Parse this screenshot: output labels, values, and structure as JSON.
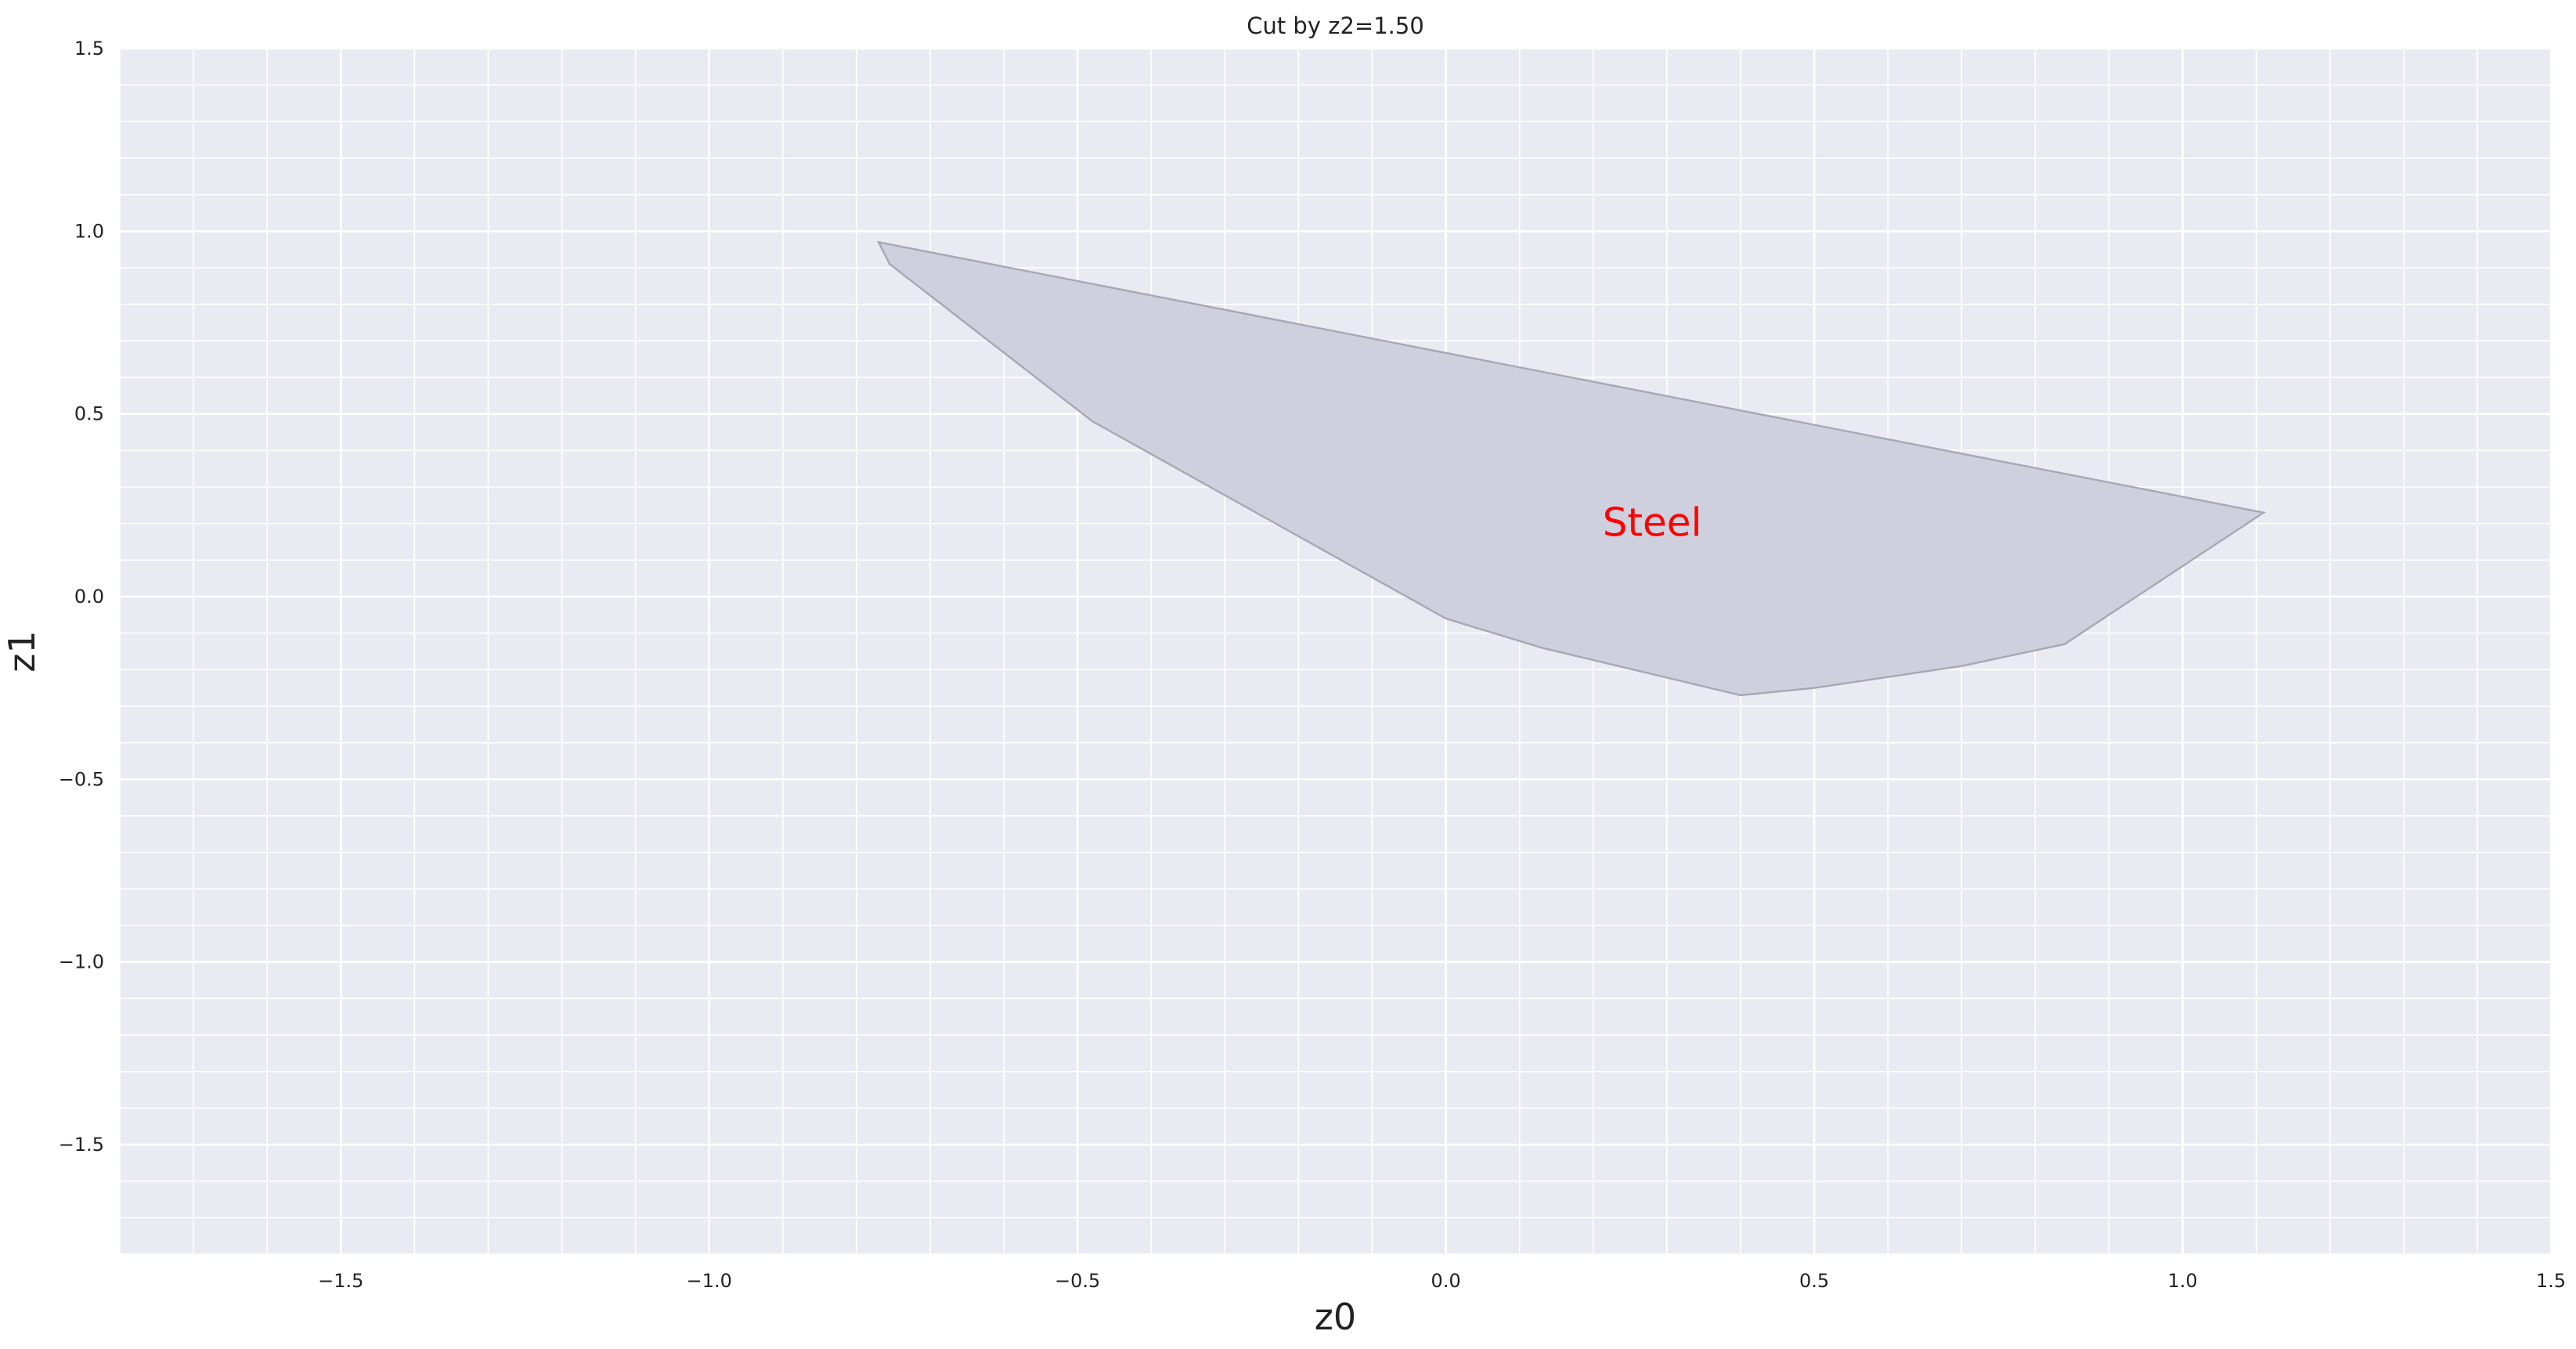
{
  "chart_data": {
    "type": "area",
    "title": "Cut by z2=1.50",
    "xlabel": "z0",
    "ylabel": "z1",
    "xlim": [
      -1.8,
      1.5
    ],
    "ylim": [
      -1.8,
      1.5
    ],
    "xticks": [
      -1.5,
      -1.0,
      -0.5,
      0.0,
      0.5,
      1.0,
      1.5
    ],
    "xtick_labels": [
      "−1.5",
      "−1.0",
      "−0.5",
      "0.0",
      "0.5",
      "1.0",
      "1.5"
    ],
    "yticks": [
      1.5,
      1.0,
      0.5,
      0.0,
      -0.5,
      -1.0,
      -1.5
    ],
    "ytick_labels": [
      "1.5",
      "1.0",
      "0.5",
      "0.0",
      "−0.5",
      "−1.0",
      "−1.5"
    ],
    "minor_grid_step": 0.1,
    "grid": true,
    "background_color": "#eaeaf2",
    "grid_color": "#ffffff",
    "regions": [
      {
        "label": "Steel",
        "label_color": "#ff0000",
        "label_x": 0.28,
        "label_y": 0.2,
        "fill_color": "#cfd0dd",
        "edge_color": "#a8a8b4",
        "points": [
          [
            -0.77,
            0.97
          ],
          [
            1.11,
            0.23
          ],
          [
            0.9,
            -0.05
          ],
          [
            0.84,
            -0.13
          ],
          [
            0.7,
            -0.19
          ],
          [
            0.5,
            -0.25
          ],
          [
            0.4,
            -0.27
          ],
          [
            0.13,
            -0.14
          ],
          [
            0.0,
            -0.06
          ],
          [
            -0.48,
            0.48
          ],
          [
            -0.755,
            0.91
          ]
        ]
      }
    ]
  }
}
